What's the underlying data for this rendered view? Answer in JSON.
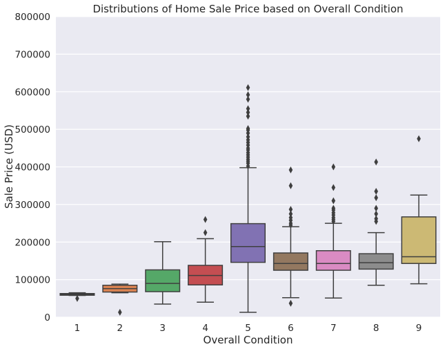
{
  "chart_data": {
    "type": "box",
    "title": "Distributions of Home Sale Price based on Overall Condition",
    "xlabel": "Overall Condition",
    "ylabel": "Sale Price (USD)",
    "ylim": [
      0,
      800000
    ],
    "yticks": [
      0,
      100000,
      200000,
      300000,
      400000,
      500000,
      600000,
      700000,
      800000
    ],
    "grid": true,
    "categories": [
      "1",
      "2",
      "3",
      "4",
      "5",
      "6",
      "7",
      "8",
      "9"
    ],
    "colors": [
      "#4c72b0",
      "#dd8452",
      "#55a868",
      "#c44e52",
      "#8172b3",
      "#937860",
      "#da8bc3",
      "#8c8c8c",
      "#ccb974"
    ],
    "boxes": [
      {
        "category": "1",
        "whislo": 58000,
        "q1": 58500,
        "med": 61000,
        "q3": 63000,
        "whishi": 65000,
        "fliers": [
          50000
        ]
      },
      {
        "category": "2",
        "whislo": 65000,
        "q1": 67000,
        "med": 76000,
        "q3": 85000,
        "whishi": 88000,
        "fliers": [
          13000
        ]
      },
      {
        "category": "3",
        "whislo": 35000,
        "q1": 68000,
        "med": 90000,
        "q3": 126000,
        "whishi": 201000,
        "fliers": []
      },
      {
        "category": "4",
        "whislo": 40000,
        "q1": 86000,
        "med": 111000,
        "q3": 138000,
        "whishi": 209000,
        "fliers": [
          225000,
          260000
        ]
      },
      {
        "category": "5",
        "whislo": 13000,
        "q1": 146000,
        "med": 188000,
        "q3": 249000,
        "whishi": 398000,
        "fliers": [
          402000,
          410000,
          415000,
          420000,
          426000,
          432000,
          438000,
          445000,
          450000,
          458000,
          465000,
          472000,
          480000,
          490000,
          498000,
          502000,
          535000,
          545000,
          555000,
          580000,
          592000,
          611000
        ]
      },
      {
        "category": "6",
        "whislo": 52000,
        "q1": 125000,
        "med": 143000,
        "q3": 171000,
        "whishi": 241000,
        "fliers": [
          37000,
          245000,
          250000,
          258000,
          265000,
          275000,
          287000,
          350000,
          392000
        ]
      },
      {
        "category": "7",
        "whislo": 51000,
        "q1": 125000,
        "med": 143000,
        "q3": 177000,
        "whishi": 250000,
        "fliers": [
          255000,
          260000,
          265000,
          272000,
          278000,
          285000,
          290000,
          310000,
          345000,
          400000
        ]
      },
      {
        "category": "8",
        "whislo": 85000,
        "q1": 128000,
        "med": 145000,
        "q3": 169000,
        "whishi": 225000,
        "fliers": [
          255000,
          262000,
          275000,
          290000,
          318000,
          335000,
          413000
        ]
      },
      {
        "category": "9",
        "whislo": 89000,
        "q1": 143000,
        "med": 161000,
        "q3": 267000,
        "whishi": 325000,
        "fliers": [
          475000
        ]
      }
    ]
  }
}
